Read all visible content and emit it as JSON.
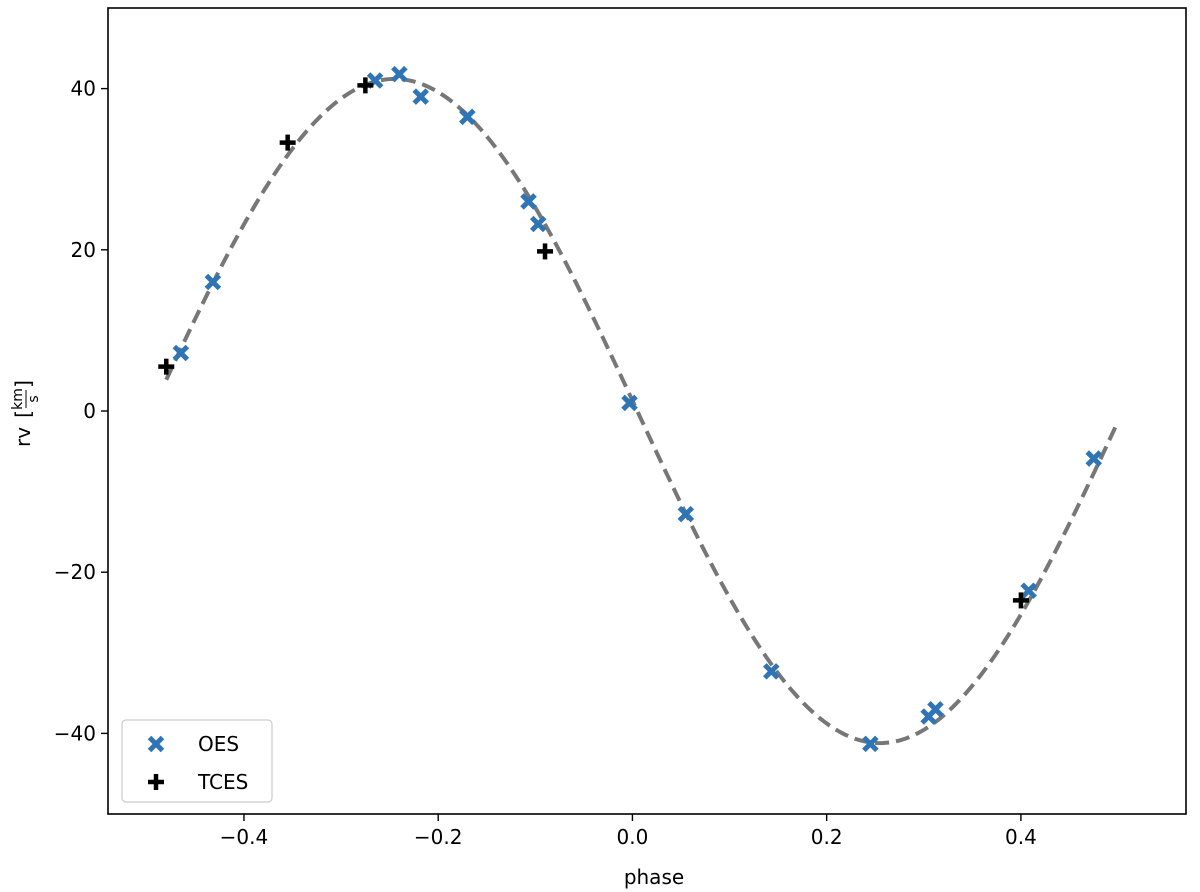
{
  "chart_data": {
    "type": "scatter",
    "xlabel": "phase",
    "ylabel_prefix": "rv",
    "ylabel_unit_num": "km",
    "ylabel_unit_den": "s",
    "xlim": [
      -0.54,
      0.57
    ],
    "ylim": [
      -50,
      50
    ],
    "x_ticks": [
      -0.4,
      -0.2,
      0.0,
      0.2,
      0.4
    ],
    "x_tick_labels": [
      "−0.4",
      "−0.2",
      "0.0",
      "0.2",
      "0.4"
    ],
    "y_ticks": [
      -40,
      -20,
      0,
      20,
      40
    ],
    "y_tick_labels": [
      "−40",
      "−20",
      "0",
      "20",
      "40"
    ],
    "grid": false,
    "legend_position": "lower-left",
    "model_curve": {
      "style": "dashed",
      "color": "#777777",
      "amplitude": 41.2,
      "phase_offset": 0.005,
      "x_range": [
        -0.48,
        0.5
      ]
    },
    "series": [
      {
        "name": "OES",
        "marker": "x",
        "color": "#2f75b5",
        "x": [
          -0.465,
          -0.432,
          -0.265,
          -0.24,
          -0.218,
          -0.17,
          -0.107,
          -0.097,
          -0.003,
          0.055,
          0.143,
          0.245,
          0.305,
          0.312,
          0.408,
          0.475
        ],
        "y": [
          7.2,
          16.0,
          41.0,
          41.8,
          39.0,
          36.5,
          26.0,
          23.2,
          1.0,
          -12.8,
          -32.3,
          -41.3,
          -37.9,
          -37.0,
          -22.3,
          -5.9
        ]
      },
      {
        "name": "TCES",
        "marker": "+",
        "color": "#000000",
        "x": [
          -0.48,
          -0.355,
          -0.275,
          -0.09,
          0.4
        ],
        "y": [
          5.5,
          33.3,
          40.4,
          19.8,
          -23.5
        ]
      }
    ]
  }
}
